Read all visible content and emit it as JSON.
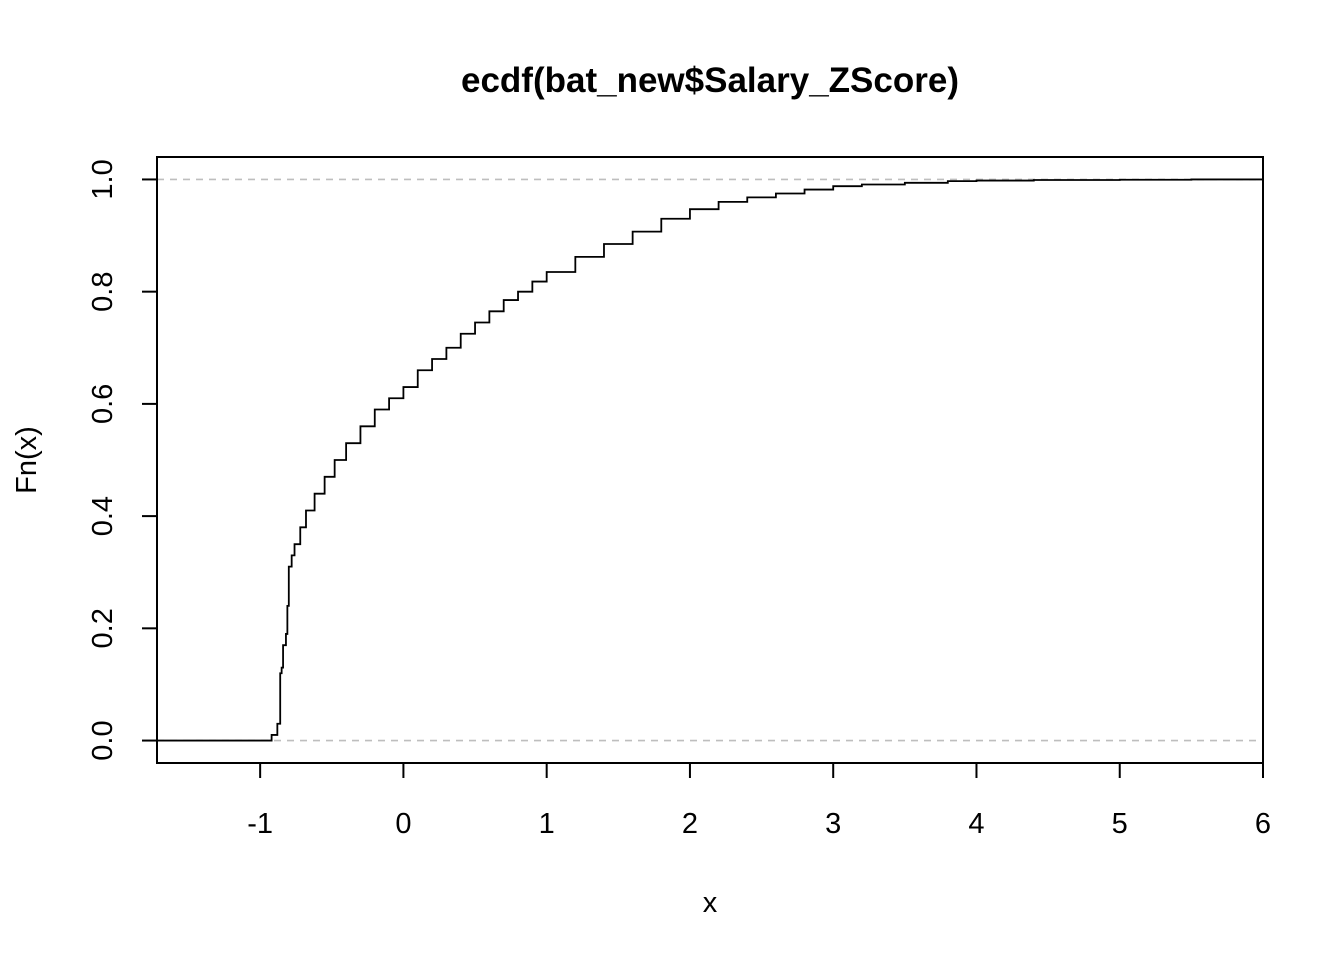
{
  "chart_data": {
    "type": "line",
    "title": "ecdf(bat_new$Salary_ZScore)",
    "xlabel": "x",
    "ylabel": "Fn(x)",
    "xlim": [
      -1.72,
      6.0
    ],
    "ylim": [
      -0.04,
      1.04
    ],
    "x_ticks": [
      -1,
      0,
      1,
      2,
      3,
      4,
      5,
      6
    ],
    "x_tick_labels": [
      "-1",
      "0",
      "1",
      "2",
      "3",
      "4",
      "5",
      "6"
    ],
    "y_ticks": [
      0.0,
      0.2,
      0.4,
      0.6,
      0.8,
      1.0
    ],
    "y_tick_labels": [
      "0.0",
      "0.2",
      "0.4",
      "0.6",
      "0.8",
      "1.0"
    ],
    "grid": false,
    "reference_lines": [
      0.0,
      1.0
    ],
    "reference_line_color": "#bebebe",
    "line_color": "#000000",
    "series": [
      {
        "x": [
          -1.72,
          -0.95,
          -0.92,
          -0.88,
          -0.86,
          -0.86,
          -0.85,
          -0.84,
          -0.82,
          -0.81,
          -0.8,
          -0.8,
          -0.78,
          -0.76,
          -0.72,
          -0.68,
          -0.62,
          -0.55,
          -0.48,
          -0.4,
          -0.3,
          -0.2,
          -0.1,
          0.0,
          0.1,
          0.2,
          0.3,
          0.4,
          0.5,
          0.6,
          0.7,
          0.8,
          0.9,
          1.0,
          1.2,
          1.4,
          1.6,
          1.8,
          2.0,
          2.2,
          2.4,
          2.6,
          2.8,
          3.0,
          3.2,
          3.5,
          3.8,
          4.0,
          4.4,
          5.0,
          5.5,
          6.0
        ],
        "y": [
          0.0,
          0.0,
          0.01,
          0.03,
          0.03,
          0.12,
          0.13,
          0.17,
          0.19,
          0.24,
          0.27,
          0.31,
          0.33,
          0.35,
          0.38,
          0.41,
          0.44,
          0.47,
          0.5,
          0.53,
          0.56,
          0.59,
          0.61,
          0.63,
          0.66,
          0.68,
          0.7,
          0.725,
          0.745,
          0.765,
          0.785,
          0.8,
          0.818,
          0.835,
          0.862,
          0.885,
          0.907,
          0.93,
          0.947,
          0.96,
          0.968,
          0.975,
          0.982,
          0.988,
          0.991,
          0.994,
          0.997,
          0.998,
          0.999,
          0.9995,
          1.0,
          1.0
        ]
      }
    ]
  }
}
